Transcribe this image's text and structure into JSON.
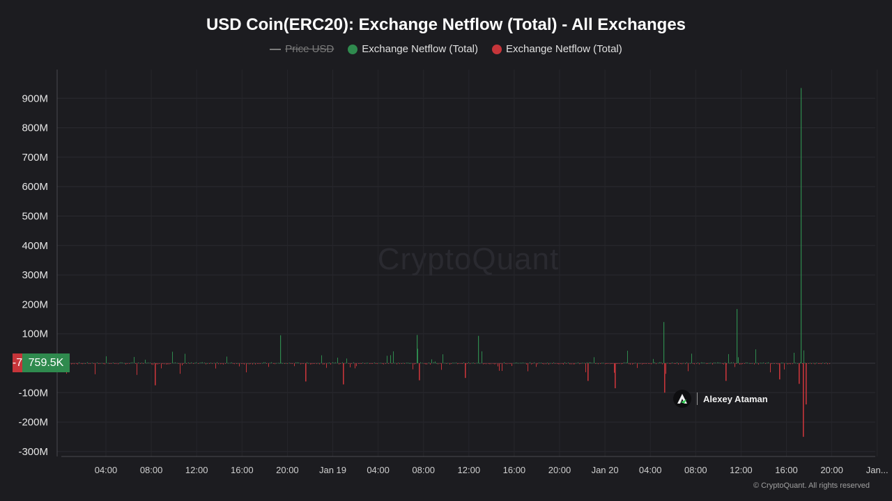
{
  "chart_data": {
    "type": "bar",
    "title": "USD Coin(ERC20): Exchange Netflow (Total) - All Exchanges",
    "legend": [
      {
        "label": "Price USD",
        "color": "#7c7c7c",
        "hidden": true
      },
      {
        "label": "Exchange Netflow (Total)",
        "color": "#2f8a4e"
      },
      {
        "label": "Exchange Netflow (Total)",
        "color": "#c6353a"
      }
    ],
    "y_ticks": [
      "900M",
      "800M",
      "700M",
      "600M",
      "500M",
      "400M",
      "300M",
      "200M",
      "100M",
      "-100M",
      "-200M",
      "-300M"
    ],
    "ylim": [
      -300000000,
      900000000
    ],
    "x_ticks": [
      "04:00",
      "08:00",
      "12:00",
      "16:00",
      "20:00",
      "Jan 19",
      "04:00",
      "08:00",
      "12:00",
      "16:00",
      "20:00",
      "Jan 20",
      "04:00",
      "08:00",
      "12:00",
      "16:00",
      "20:00",
      "Jan..."
    ],
    "grid": true,
    "positive_color": "#2f8a4e",
    "negative_color": "#c6353a",
    "notable_values": [
      {
        "x": "Jan 19 ~19:30",
        "value": 95000000
      },
      {
        "x": "Jan 19 ~07:30",
        "value": 96000000
      },
      {
        "x": "Jan 19 ~13:00",
        "value": 93000000
      },
      {
        "x": "Jan 20 ~05:20",
        "value": 140000000
      },
      {
        "x": "Jan 20 ~05:20",
        "value": -100000000
      },
      {
        "x": "Jan 20 ~11:50",
        "value": 184000000
      },
      {
        "x": "Jan 20 ~17:20",
        "value": 935000000
      },
      {
        "x": "Jan 20 ~17:40",
        "value": -250000000
      },
      {
        "x": "Jan 20 ~17:50",
        "value": -140000000
      }
    ],
    "current_value_label": "759.5K",
    "current_value_prefix": "-7"
  },
  "watermark": "CryptoQuant",
  "author": "Alexey Ataman",
  "copyright": "© CryptoQuant. All rights reserved"
}
